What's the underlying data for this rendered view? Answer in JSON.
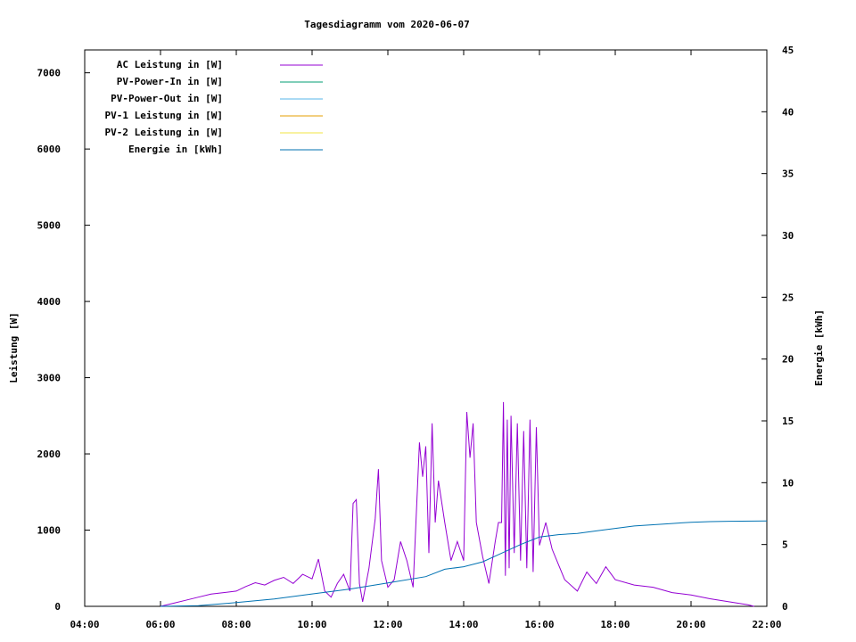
{
  "chart_data": {
    "type": "line",
    "title": "Tagesdiagramm vom 2020-06-07",
    "ylabel": "Leistung [W]",
    "y2label": "Energie [kWh]",
    "xlim": [
      "04:00",
      "22:00"
    ],
    "ylim": [
      0,
      7300
    ],
    "y2lim": [
      0,
      45
    ],
    "x_ticks": [
      "04:00",
      "06:00",
      "08:00",
      "10:00",
      "12:00",
      "14:00",
      "16:00",
      "18:00",
      "20:00",
      "22:00"
    ],
    "y_ticks": [
      0,
      1000,
      2000,
      3000,
      4000,
      5000,
      6000,
      7000
    ],
    "y2_ticks": [
      0,
      5,
      10,
      15,
      20,
      25,
      30,
      35,
      40,
      45
    ],
    "legend_position": "top-left",
    "series": [
      {
        "name": "AC Leistung in [W]",
        "color": "#9400d3",
        "axis": "left",
        "points": [
          [
            "06:00",
            0
          ],
          [
            "06:20",
            40
          ],
          [
            "06:40",
            80
          ],
          [
            "07:00",
            120
          ],
          [
            "07:20",
            160
          ],
          [
            "07:40",
            180
          ],
          [
            "08:00",
            200
          ],
          [
            "08:15",
            260
          ],
          [
            "08:30",
            310
          ],
          [
            "08:45",
            280
          ],
          [
            "09:00",
            340
          ],
          [
            "09:15",
            380
          ],
          [
            "09:30",
            300
          ],
          [
            "09:45",
            420
          ],
          [
            "10:00",
            360
          ],
          [
            "10:10",
            620
          ],
          [
            "10:20",
            200
          ],
          [
            "10:30",
            120
          ],
          [
            "10:40",
            300
          ],
          [
            "10:50",
            420
          ],
          [
            "11:00",
            200
          ],
          [
            "11:05",
            1350
          ],
          [
            "11:10",
            1400
          ],
          [
            "11:15",
            300
          ],
          [
            "11:20",
            60
          ],
          [
            "11:30",
            500
          ],
          [
            "11:40",
            1150
          ],
          [
            "11:45",
            1800
          ],
          [
            "11:50",
            600
          ],
          [
            "12:00",
            250
          ],
          [
            "12:10",
            350
          ],
          [
            "12:20",
            850
          ],
          [
            "12:30",
            600
          ],
          [
            "12:40",
            250
          ],
          [
            "12:50",
            2150
          ],
          [
            "12:55",
            1700
          ],
          [
            "13:00",
            2100
          ],
          [
            "13:05",
            700
          ],
          [
            "13:10",
            2400
          ],
          [
            "13:15",
            1100
          ],
          [
            "13:20",
            1650
          ],
          [
            "13:30",
            1100
          ],
          [
            "13:40",
            600
          ],
          [
            "13:50",
            850
          ],
          [
            "14:00",
            600
          ],
          [
            "14:05",
            2550
          ],
          [
            "14:10",
            1950
          ],
          [
            "14:15",
            2400
          ],
          [
            "14:20",
            1100
          ],
          [
            "14:30",
            650
          ],
          [
            "14:40",
            300
          ],
          [
            "14:50",
            850
          ],
          [
            "14:55",
            1100
          ],
          [
            "15:00",
            1100
          ],
          [
            "15:03",
            2680
          ],
          [
            "15:06",
            400
          ],
          [
            "15:09",
            2450
          ],
          [
            "15:12",
            500
          ],
          [
            "15:15",
            2500
          ],
          [
            "15:20",
            700
          ],
          [
            "15:25",
            2400
          ],
          [
            "15:30",
            600
          ],
          [
            "15:35",
            2300
          ],
          [
            "15:40",
            500
          ],
          [
            "15:45",
            2450
          ],
          [
            "15:50",
            450
          ],
          [
            "15:55",
            2350
          ],
          [
            "16:00",
            800
          ],
          [
            "16:10",
            1100
          ],
          [
            "16:20",
            750
          ],
          [
            "16:40",
            350
          ],
          [
            "17:00",
            200
          ],
          [
            "17:15",
            450
          ],
          [
            "17:30",
            300
          ],
          [
            "17:45",
            520
          ],
          [
            "18:00",
            350
          ],
          [
            "18:30",
            280
          ],
          [
            "19:00",
            250
          ],
          [
            "19:30",
            180
          ],
          [
            "20:00",
            150
          ],
          [
            "20:30",
            100
          ],
          [
            "21:00",
            60
          ],
          [
            "21:30",
            20
          ],
          [
            "21:40",
            0
          ]
        ]
      },
      {
        "name": "PV-Power-In in [W]",
        "color": "#009e73",
        "axis": "left",
        "points": []
      },
      {
        "name": "PV-Power-Out in [W]",
        "color": "#56b4e9",
        "axis": "left",
        "points": []
      },
      {
        "name": "PV-1 Leistung in [W]",
        "color": "#e69f00",
        "axis": "left",
        "points": []
      },
      {
        "name": "PV-2 Leistung in [W]",
        "color": "#f0e442",
        "axis": "left",
        "points": []
      },
      {
        "name": "Energie in [kWh]",
        "color": "#0072b2",
        "axis": "right",
        "points": [
          [
            "06:00",
            0
          ],
          [
            "07:00",
            0.05
          ],
          [
            "08:00",
            0.3
          ],
          [
            "09:00",
            0.6
          ],
          [
            "10:00",
            1.0
          ],
          [
            "11:00",
            1.4
          ],
          [
            "12:00",
            1.9
          ],
          [
            "13:00",
            2.4
          ],
          [
            "13:30",
            3.0
          ],
          [
            "14:00",
            3.2
          ],
          [
            "14:30",
            3.6
          ],
          [
            "15:00",
            4.3
          ],
          [
            "15:30",
            5.0
          ],
          [
            "16:00",
            5.6
          ],
          [
            "16:30",
            5.8
          ],
          [
            "17:00",
            5.9
          ],
          [
            "17:30",
            6.1
          ],
          [
            "18:00",
            6.3
          ],
          [
            "18:30",
            6.5
          ],
          [
            "19:00",
            6.6
          ],
          [
            "19:30",
            6.7
          ],
          [
            "20:00",
            6.8
          ],
          [
            "20:30",
            6.85
          ],
          [
            "21:00",
            6.88
          ],
          [
            "22:00",
            6.9
          ]
        ]
      }
    ]
  }
}
